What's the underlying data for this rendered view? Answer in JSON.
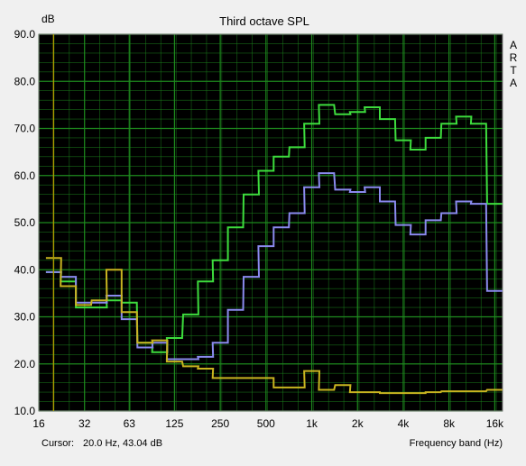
{
  "chart_data": {
    "type": "line",
    "title": "Third octave SPL",
    "ylabel": "dB",
    "xlabel": "Frequency band (Hz)",
    "side_label": [
      "A",
      "R",
      "T",
      "A"
    ],
    "ylim": [
      10,
      90
    ],
    "y_ticks": [
      "90.0",
      "80.0",
      "70.0",
      "60.0",
      "50.0",
      "40.0",
      "30.0",
      "20.0",
      "10.0"
    ],
    "x_ticks": [
      "16",
      "32",
      "63",
      "125",
      "250",
      "500",
      "1k",
      "2k",
      "4k",
      "8k",
      "16k"
    ],
    "x_tick_values": [
      16,
      32,
      63,
      125,
      250,
      500,
      1000,
      2000,
      4000,
      8000,
      16000
    ],
    "xlim": [
      16,
      18000
    ],
    "x_scale": "log",
    "grid": true,
    "background": "#000000",
    "grid_color": "#1e8a1e",
    "cursor": {
      "x": 20,
      "label": "Cursor:",
      "value_text": "20.0 Hz, 43.04 dB",
      "color": "#b0a000"
    },
    "bands": [
      20,
      25,
      31.5,
      40,
      50,
      63,
      80,
      100,
      125,
      160,
      200,
      250,
      315,
      400,
      500,
      630,
      800,
      1000,
      1250,
      1600,
      2000,
      2500,
      3150,
      4000,
      5000,
      6300,
      8000,
      10000,
      12500,
      16000
    ],
    "series": [
      {
        "color": "#3ddc3d",
        "values": [
          39.5,
          37.5,
          32.0,
          32.0,
          33.5,
          33.0,
          24.5,
          22.5,
          25.5,
          30.5,
          37.5,
          42.0,
          49.0,
          56.0,
          61.0,
          64.0,
          66.0,
          71.0,
          75.0,
          73.0,
          73.5,
          74.5,
          72.0,
          67.5,
          65.5,
          68.0,
          71.0,
          72.5,
          71.0,
          54.0
        ]
      },
      {
        "color": "#8a8aee",
        "values": [
          39.5,
          38.5,
          33.0,
          33.0,
          34.5,
          29.5,
          23.5,
          24.5,
          21.0,
          21.0,
          21.5,
          24.5,
          31.5,
          38.5,
          45.0,
          49.0,
          52.0,
          57.5,
          60.5,
          57.0,
          56.5,
          57.5,
          54.5,
          49.5,
          47.5,
          50.5,
          52.0,
          54.5,
          54.0,
          35.5
        ]
      },
      {
        "color": "#c8b420",
        "values": [
          42.5,
          36.5,
          32.5,
          33.5,
          40.0,
          31.0,
          24.5,
          25.0,
          20.5,
          19.5,
          19.0,
          17.0,
          17.0,
          17.0,
          17.0,
          15.0,
          15.0,
          18.5,
          14.5,
          15.5,
          14.0,
          14.0,
          13.8,
          13.8,
          13.8,
          14.0,
          14.2,
          14.2,
          14.2,
          14.5
        ]
      }
    ]
  }
}
